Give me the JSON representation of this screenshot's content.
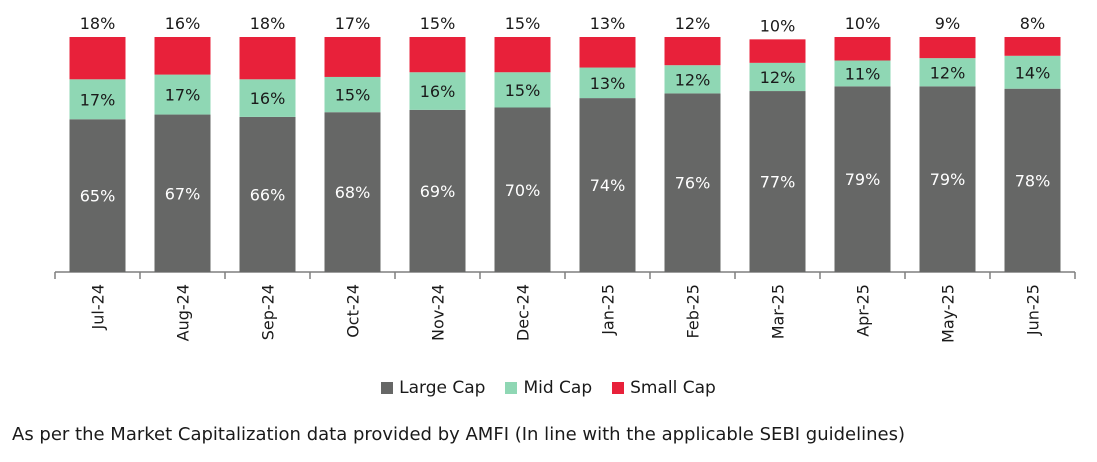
{
  "chart_data": {
    "type": "bar",
    "stacked": true,
    "categories": [
      "Jul-24",
      "Aug-24",
      "Sep-24",
      "Oct-24",
      "Nov-24",
      "Dec-24",
      "Jan-25",
      "Feb-25",
      "Mar-25",
      "Apr-25",
      "May-25",
      "Jun-25"
    ],
    "series": [
      {
        "name": "Large Cap",
        "color": "#666766",
        "values": [
          65,
          67,
          66,
          68,
          69,
          70,
          74,
          76,
          77,
          79,
          79,
          78
        ]
      },
      {
        "name": "Mid Cap",
        "color": "#8fd7b4",
        "values": [
          17,
          17,
          16,
          15,
          16,
          15,
          13,
          12,
          12,
          11,
          12,
          14
        ]
      },
      {
        "name": "Small Cap",
        "color": "#e8213a",
        "values": [
          18,
          16,
          18,
          17,
          15,
          15,
          13,
          12,
          10,
          10,
          9,
          8
        ]
      }
    ],
    "ylim": [
      0,
      100
    ],
    "unit": "%",
    "legend_position": "bottom",
    "grid": false
  },
  "legend": {
    "large": "Large Cap",
    "mid": "Mid Cap",
    "small": "Small Cap"
  },
  "footnote": "As per the Market Capitalization data provided by AMFI (In line with the applicable SEBI guidelines)"
}
